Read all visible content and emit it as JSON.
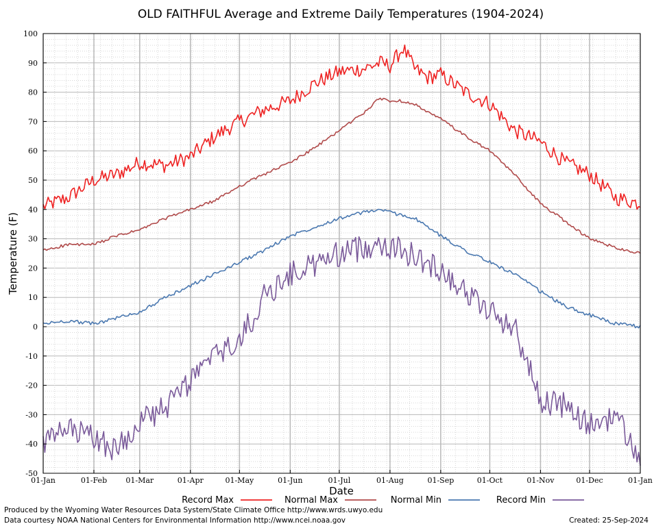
{
  "chart_data": {
    "type": "line",
    "title": "OLD FAITHFUL Average and Extreme Daily Temperatures (1904-2024)",
    "xlabel": "Date",
    "ylabel": "Temperature (F)",
    "ylim": [
      -50,
      100
    ],
    "yticks": [
      100,
      90,
      80,
      70,
      60,
      50,
      40,
      30,
      20,
      10,
      0,
      -10,
      -20,
      -30,
      -40,
      -50
    ],
    "x_tick_labels": [
      "01-Jan",
      "01-Feb",
      "01-Mar",
      "01-Apr",
      "01-May",
      "01-Jun",
      "01-Jul",
      "01-Aug",
      "01-Sep",
      "01-Oct",
      "01-Nov",
      "01-Dec",
      "01-Jan"
    ],
    "x_tick_days": [
      0,
      31,
      59,
      90,
      120,
      151,
      181,
      212,
      243,
      273,
      304,
      334,
      365
    ],
    "grid": true,
    "legend_placement": "bottom",
    "series": [
      {
        "name": "Record Max",
        "color": "#ee2222",
        "x": [
          0,
          15,
          31,
          45,
          59,
          75,
          90,
          105,
          120,
          135,
          151,
          166,
          181,
          196,
          206,
          212,
          220,
          227,
          235,
          243,
          258,
          273,
          288,
          304,
          319,
          334,
          350,
          365
        ],
        "y": [
          41,
          44,
          50,
          52,
          56,
          55,
          58,
          65,
          70,
          74,
          77,
          83,
          87,
          88,
          90,
          89,
          95,
          88,
          85,
          86,
          80,
          76,
          67,
          63,
          56,
          52,
          44,
          42
        ]
      },
      {
        "name": "Normal Max",
        "color": "#b04a4a",
        "x": [
          0,
          15,
          31,
          45,
          59,
          75,
          90,
          105,
          120,
          135,
          151,
          166,
          181,
          196,
          206,
          212,
          220,
          227,
          235,
          243,
          258,
          273,
          288,
          304,
          319,
          334,
          350,
          365
        ],
        "y": [
          26,
          28,
          28,
          31,
          33,
          37,
          40,
          43,
          48,
          52,
          56,
          61,
          67,
          73,
          78,
          77,
          77,
          76,
          73,
          71,
          65,
          60,
          52,
          42,
          36,
          30,
          27,
          25
        ]
      },
      {
        "name": "Normal Min",
        "color": "#4a78b0",
        "x": [
          0,
          15,
          31,
          45,
          59,
          75,
          90,
          105,
          120,
          135,
          151,
          166,
          181,
          196,
          206,
          212,
          220,
          227,
          235,
          243,
          258,
          273,
          288,
          304,
          319,
          334,
          350,
          365
        ],
        "y": [
          1,
          2,
          1,
          3,
          5,
          10,
          14,
          18,
          22,
          26,
          31,
          34,
          37,
          39,
          40,
          39,
          38,
          37,
          34,
          31,
          26,
          22,
          18,
          12,
          7,
          4,
          1,
          0
        ]
      },
      {
        "name": "Record Min",
        "color": "#7a5a9a",
        "x": [
          0,
          15,
          31,
          45,
          59,
          75,
          90,
          105,
          120,
          135,
          151,
          166,
          181,
          196,
          206,
          212,
          220,
          227,
          235,
          243,
          258,
          273,
          288,
          304,
          319,
          334,
          350,
          365
        ],
        "y": [
          -40,
          -35,
          -38,
          -42,
          -32,
          -28,
          -18,
          -10,
          -5,
          10,
          18,
          21,
          25,
          27,
          29,
          27,
          26,
          24,
          21,
          20,
          12,
          5,
          0,
          -25,
          -27,
          -34,
          -30,
          -46
        ]
      }
    ]
  },
  "footer": {
    "produced_by": "Produced by the Wyoming Water Resources Data System/State Climate Office http://www.wrds.uwyo.edu",
    "data_courtesy": "Data courtesy NOAA National Centers for Environmental Information http://www.ncei.noaa.gov",
    "created": "Created:  25-Sep-2024"
  }
}
